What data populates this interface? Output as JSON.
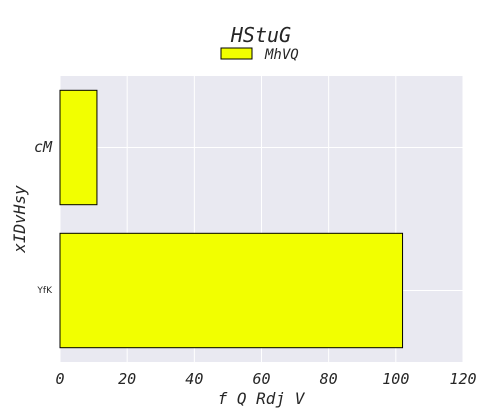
{
  "chart_data": {
    "type": "bar",
    "orientation": "horizontal",
    "title": "HStuG",
    "xlabel": "f Q  Rdj V",
    "ylabel": "xIDvHsy",
    "categories": [
      "cM",
      "YfK"
    ],
    "series": [
      {
        "name": "MhVQ",
        "values": [
          11,
          102
        ],
        "color": "#f2ff00"
      }
    ],
    "xlim": [
      0,
      120
    ],
    "xticks": [
      0,
      20,
      40,
      60,
      80,
      100,
      120
    ],
    "grid": true,
    "legend_position": "top-center",
    "colors": {
      "plot_background": "#e9e9f1",
      "grid": "#ffffff",
      "bar_edge": "#000000"
    }
  }
}
